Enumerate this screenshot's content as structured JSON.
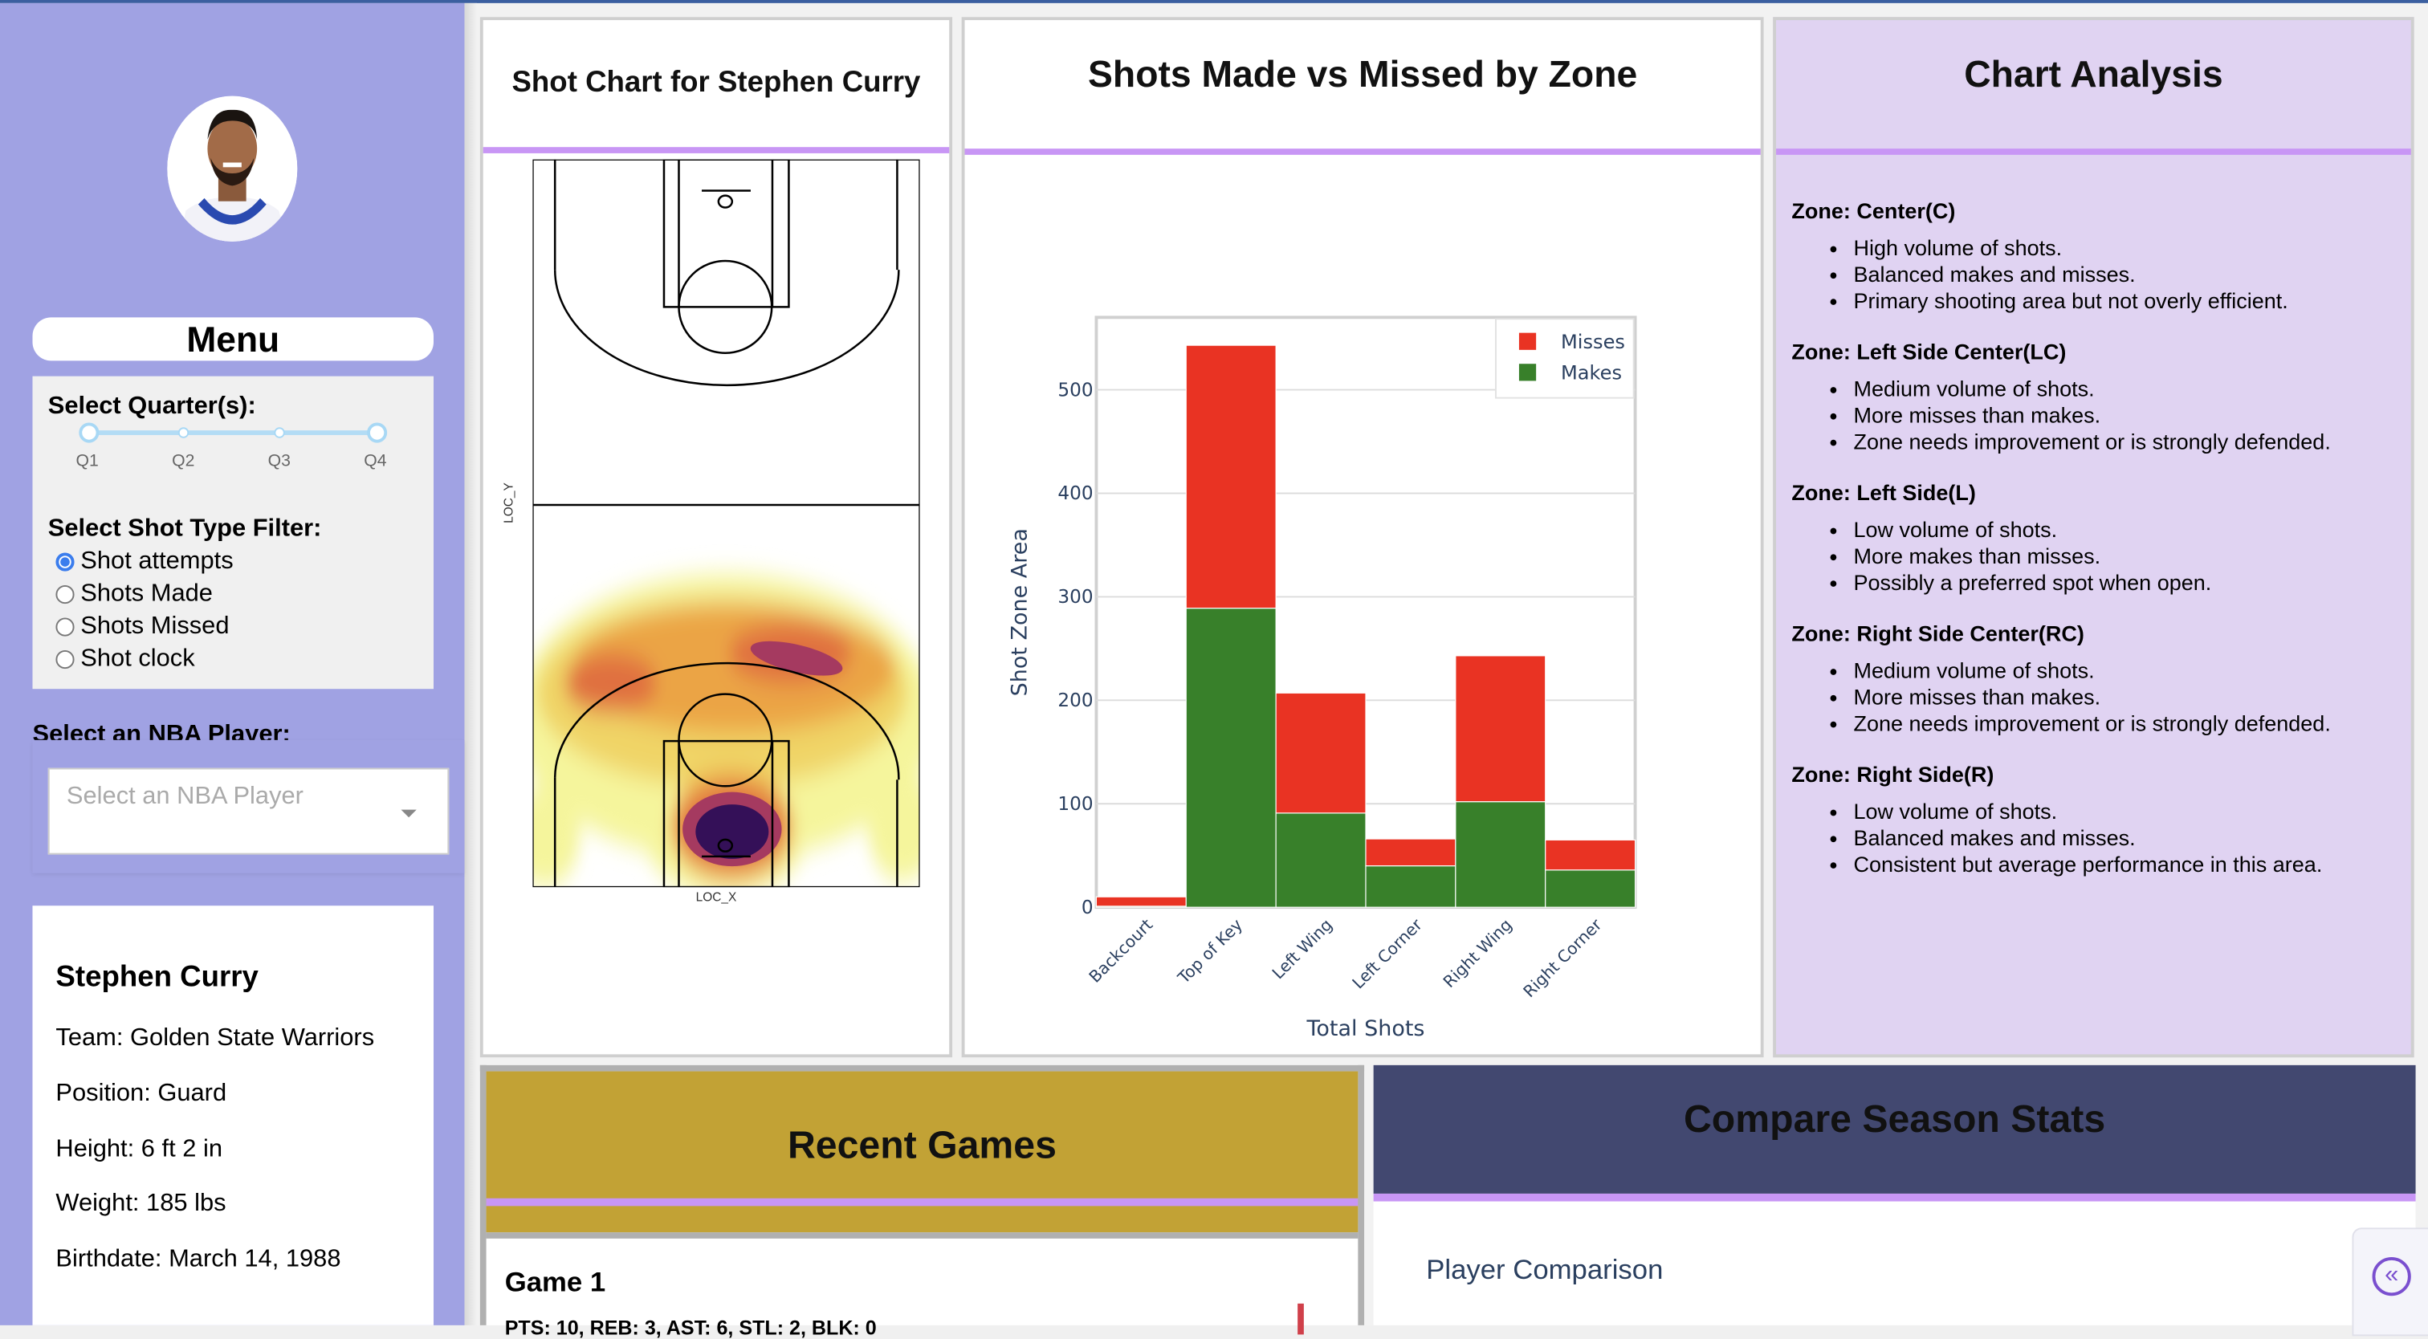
{
  "sidebar": {
    "menu_title": "Menu",
    "quarter_label": "Select Quarter(s):",
    "quarters": [
      "Q1",
      "Q2",
      "Q3",
      "Q4"
    ],
    "quarter_range_selected": [
      "Q1",
      "Q4"
    ],
    "shot_filter_label": "Select Shot Type Filter:",
    "shot_filters": [
      "Shot attempts",
      "Shots Made",
      "Shots Missed",
      "Shot clock"
    ],
    "shot_filter_selected": "Shot attempts",
    "player_select_label": "Select an NBA Player:",
    "player_select_placeholder": "Select an NBA Player",
    "player": {
      "name": "Stephen Curry",
      "team": "Team: Golden State Warriors",
      "position": "Position: Guard",
      "height": "Height: 6 ft 2 in",
      "weight": "Weight: 185 lbs",
      "birthdate": "Birthdate: March 14, 1988"
    }
  },
  "shot_chart": {
    "title": "Shot Chart for Stephen Curry",
    "xlabel": "LOC_X",
    "ylabel": "LOC_Y"
  },
  "bar_panel": {
    "title": "Shots Made vs Missed by Zone"
  },
  "chart_data": {
    "type": "bar",
    "stacked": true,
    "categories": [
      "Backcourt",
      "Top of Key",
      "Left Wing",
      "Left Corner",
      "Right Wing",
      "Right Corner"
    ],
    "series": [
      {
        "name": "Makes",
        "color": "#38802a",
        "values": [
          1,
          289,
          91,
          40,
          102,
          36
        ]
      },
      {
        "name": "Misses",
        "color": "#e93323",
        "values": [
          9,
          254,
          116,
          26,
          141,
          29
        ]
      }
    ],
    "xlabel": "Total Shots",
    "ylabel": "Shot Zone Area",
    "ylim": [
      0,
      570
    ],
    "yticks": [
      0,
      100,
      200,
      300,
      400,
      500
    ],
    "grid": true,
    "legend": "top-right",
    "legend_order": [
      "Misses",
      "Makes"
    ]
  },
  "analysis": {
    "title": "Chart Analysis",
    "zones": [
      {
        "heading": "Zone: Center(C)",
        "points": [
          "High volume of shots.",
          "Balanced makes and misses.",
          "Primary shooting area but not overly efficient."
        ]
      },
      {
        "heading": "Zone: Left Side Center(LC)",
        "points": [
          "Medium volume of shots.",
          "More misses than makes.",
          "Zone needs improvement or is strongly defended."
        ]
      },
      {
        "heading": "Zone: Left Side(L)",
        "points": [
          "Low volume of shots.",
          "More makes than misses.",
          "Possibly a preferred spot when open."
        ]
      },
      {
        "heading": "Zone: Right Side Center(RC)",
        "points": [
          "Medium volume of shots.",
          "More misses than makes.",
          "Zone needs improvement or is strongly defended."
        ]
      },
      {
        "heading": "Zone: Right Side(R)",
        "points": [
          "Low volume of shots.",
          "Balanced makes and misses.",
          "Consistent but average performance in this area."
        ]
      }
    ]
  },
  "recent_games": {
    "title": "Recent Games",
    "games": [
      {
        "label": "Game 1",
        "stats": "PTS: 10, REB: 3, AST: 6, STL: 2, BLK: 0"
      }
    ]
  },
  "compare": {
    "title": "Compare Season Stats",
    "subtitle": "Player Comparison"
  },
  "colors": {
    "sidebar": "#a0a2e3",
    "accent_line": "#c896f5",
    "analysis_bg": "#e0d3f2",
    "recent_header": "#c2a235",
    "compare_header": "#424870"
  }
}
